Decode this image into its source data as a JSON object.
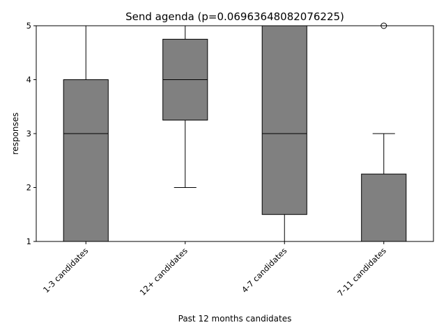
{
  "chart_data": {
    "type": "box",
    "title": "Send agenda (p=0.06963648082076225)",
    "xlabel": "Past 12 months candidates",
    "ylabel": "responses",
    "ylim": [
      1,
      5
    ],
    "yticks": [
      1,
      2,
      3,
      4,
      5
    ],
    "grid": false,
    "categories": [
      "1-3 candidates",
      "12+ candidates",
      "4-7 candidates",
      "7-11 candidates"
    ],
    "boxes": [
      {
        "category": "1-3 candidates",
        "whisker_low": 1,
        "q1": 1,
        "median": 3,
        "q3": 4,
        "whisker_high": 5,
        "outliers": []
      },
      {
        "category": "12+ candidates",
        "whisker_low": 2,
        "q1": 3.25,
        "median": 4,
        "q3": 4.75,
        "whisker_high": 5,
        "outliers": []
      },
      {
        "category": "4-7 candidates",
        "whisker_low": 1,
        "q1": 1.5,
        "median": 3,
        "q3": 5,
        "whisker_high": 5,
        "outliers": []
      },
      {
        "category": "7-11 candidates",
        "whisker_low": 1,
        "q1": 1,
        "median": 1,
        "q3": 2.25,
        "whisker_high": 3,
        "outliers": [
          5
        ]
      }
    ],
    "colors": {
      "box_fill": "#808080",
      "line": "#000000",
      "background": "#ffffff"
    }
  }
}
